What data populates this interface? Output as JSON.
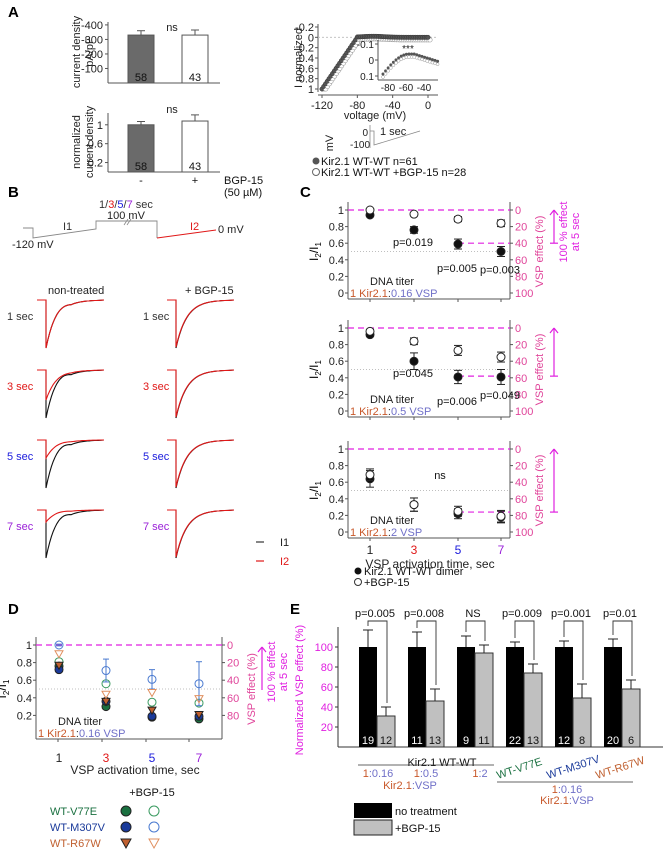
{
  "colors": {
    "magenta": "#e020e0",
    "pink": "#e0449a",
    "red": "#e01818",
    "blue": "#1a1adc",
    "purple": "#9a20d8",
    "orange": "#c8582a",
    "vsp_blue": "#7070c8",
    "green": "#1a7040",
    "navy": "#1a3a9a",
    "rust": "#c06030",
    "dark_grey": "#6a6a6a",
    "light_grey": "#c0c0c0"
  },
  "panels": {
    "A": "A",
    "B": "B",
    "C": "C",
    "D": "D",
    "E": "E"
  },
  "chart_data": [
    {
      "id": "A-top",
      "type": "bar",
      "title": "ns",
      "ylabel": "current density pA/pF",
      "categories": [
        "-",
        "+"
      ],
      "values": [
        -330,
        -330
      ],
      "errors": [
        30,
        35
      ],
      "n": [
        "58",
        "43"
      ],
      "yticks": [
        "-400",
        "-300",
        "-200",
        "-100"
      ],
      "ylim": [
        0,
        -420
      ]
    },
    {
      "id": "A-bottom",
      "type": "bar",
      "title": "ns",
      "ylabel": "normalized current density",
      "xlabel": "BGP-15 (50 µM)",
      "categories": [
        "-",
        "+"
      ],
      "values": [
        1.0,
        1.08
      ],
      "errors": [
        0.07,
        0.13
      ],
      "n": [
        "58",
        "43"
      ],
      "yticks": [
        "1",
        "0.6",
        "0.2"
      ],
      "ylim": [
        0,
        1.25
      ]
    },
    {
      "id": "A-iv",
      "type": "scatter",
      "xlabel": "voltage (mV)",
      "ylabel": "I normalized",
      "xticks": [
        "-120",
        "-80",
        "-40",
        "0"
      ],
      "yticks": [
        "-0.2",
        "0",
        "0.2",
        "0.4",
        "0.6",
        "0.8",
        "1"
      ],
      "inset": {
        "xticks": [
          "-80",
          "-60",
          "-40"
        ],
        "yticks": [
          "-0.1",
          "0",
          "0.1"
        ],
        "annotation": "***"
      },
      "protocol": {
        "label_y": "mV",
        "ticks": [
          "0",
          "-100"
        ],
        "duration": "1 sec"
      },
      "legend": [
        "Kir2.1 WT-WT  n=61",
        "Kir2.1 WT-WT +BGP-15 n=28"
      ]
    },
    {
      "id": "C1",
      "type": "scatter",
      "ylabel": "I2/I1",
      "y2label": "VSP effect (%)",
      "x": [
        1,
        3,
        5,
        7
      ],
      "series": [
        {
          "name": "Kir2.1 WT-WT dimer",
          "values": [
            0.94,
            0.76,
            0.59,
            0.5
          ],
          "errors": [
            0.02,
            0.04,
            0.06,
            0.06
          ]
        },
        {
          "name": "+BGP-15",
          "values": [
            1.0,
            0.95,
            0.89,
            0.84
          ],
          "errors": [
            0.01,
            0.02,
            0.03,
            0.04
          ]
        }
      ],
      "pvalues": [
        "",
        "p=0.019",
        "p=0.005",
        "p=0.003"
      ],
      "titer": {
        "label": "DNA titer",
        "kir": "1 Kir2.1",
        "sep": ":",
        "vsp": "0.16 VSP"
      },
      "effect_note": "100 % effect at 5 sec",
      "vsp_effect_5s": 40
    },
    {
      "id": "C2",
      "type": "scatter",
      "ylabel": "I2/I1",
      "y2label": "VSP effect (%)",
      "x": [
        1,
        3,
        5,
        7
      ],
      "series": [
        {
          "name": "Kir2.1 WT-WT dimer",
          "values": [
            0.92,
            0.6,
            0.41,
            0.41
          ],
          "errors": [
            0.02,
            0.1,
            0.08,
            0.09
          ]
        },
        {
          "name": "+BGP-15",
          "values": [
            0.96,
            0.84,
            0.73,
            0.65
          ],
          "errors": [
            0.02,
            0.04,
            0.06,
            0.06
          ]
        }
      ],
      "pvalues": [
        "",
        "p=0.045",
        "p=0.006",
        "p=0.049"
      ],
      "titer": {
        "label": "DNA titer",
        "kir": "1 Kir2.1",
        "sep": ":",
        "vsp": "0.5 VSP"
      },
      "vsp_effect_5s": 58
    },
    {
      "id": "C3",
      "type": "scatter",
      "ylabel": "I2/I1",
      "y2label": "VSP effect (%)",
      "xlabel": "VSP activation time, sec",
      "x": [
        1,
        3,
        5,
        7
      ],
      "series": [
        {
          "name": "Kir2.1 WT-WT dimer",
          "values": [
            0.64,
            0.33,
            0.22,
            0.18
          ],
          "errors": [
            0.1,
            0.08,
            0.06,
            0.07
          ]
        },
        {
          "name": "+BGP-15",
          "values": [
            0.69,
            0.33,
            0.25,
            0.19
          ],
          "errors": [
            0.07,
            0.08,
            0.06,
            0.07
          ]
        }
      ],
      "annotation": "ns",
      "titer": {
        "label": "DNA titer",
        "kir": "1 Kir2.1",
        "sep": ":",
        "vsp": "2 VSP"
      },
      "vsp_effect_5s": 76
    },
    {
      "id": "D",
      "type": "scatter",
      "ylabel": "I2/I1",
      "y2label": "VSP effect (%)",
      "xlabel": "VSP activation time, sec",
      "x": [
        1,
        3,
        5,
        7
      ],
      "series": [
        {
          "name": "WT-V77E",
          "treated": false,
          "values": [
            0.76,
            0.3,
            0.18,
            0.16
          ]
        },
        {
          "name": "WT-V77E +BGP-15",
          "treated": true,
          "values": [
            0.81,
            0.56,
            0.35,
            0.34
          ]
        },
        {
          "name": "WT-M307V",
          "treated": false,
          "values": [
            0.72,
            0.36,
            0.19,
            0.19
          ]
        },
        {
          "name": "WT-M307V +BGP-15",
          "treated": true,
          "values": [
            1.0,
            0.71,
            0.61,
            0.56
          ],
          "errors": [
            0.01,
            0.13,
            0.11,
            0.25
          ]
        },
        {
          "name": "WT-R67W",
          "treated": false,
          "values": [
            0.77,
            0.36,
            0.26,
            0.21
          ]
        },
        {
          "name": "WT-R67W +BGP-15",
          "treated": true,
          "values": [
            0.9,
            0.44,
            0.46,
            0.39
          ]
        }
      ],
      "titer": {
        "label": "DNA titer",
        "kir": "1 Kir2.1",
        "sep": ":",
        "vsp": "0.16 VSP"
      },
      "effect_note": "100 % effect at 5 sec",
      "legend_header": "+BGP-15"
    },
    {
      "id": "E",
      "type": "bar",
      "ylabel": "Normalized VSP effect (%)",
      "yticks": [
        "20",
        "40",
        "60",
        "80",
        "100"
      ],
      "ylim": [
        0,
        120
      ],
      "groups": [
        {
          "no_treatment": 100,
          "nt_err": 17,
          "bgp": 31,
          "bgp_err": 9,
          "n": [
            "19",
            "12"
          ],
          "p": "p=0.005"
        },
        {
          "no_treatment": 100,
          "nt_err": 15,
          "bgp": 46,
          "bgp_err": 12,
          "n": [
            "11",
            "13"
          ],
          "p": "p=0.008"
        },
        {
          "no_treatment": 100,
          "nt_err": 11,
          "bgp": 94,
          "bgp_err": 8,
          "n": [
            "9",
            "11"
          ],
          "p": "NS"
        },
        {
          "no_treatment": 100,
          "nt_err": 5,
          "bgp": 74,
          "bgp_err": 9,
          "n": [
            "22",
            "13"
          ],
          "p": "p=0.009"
        },
        {
          "no_treatment": 100,
          "nt_err": 6,
          "bgp": 49,
          "bgp_err": 14,
          "n": [
            "12",
            "8"
          ],
          "p": "p=0.001"
        },
        {
          "no_treatment": 100,
          "nt_err": 8,
          "bgp": 58,
          "bgp_err": 9,
          "n": [
            "20",
            "6"
          ],
          "p": "p=0.01"
        }
      ],
      "legend": [
        "no treatment",
        "+BGP-15"
      ]
    }
  ],
  "B": {
    "protocol_times": [
      "1",
      "/",
      "3",
      "/",
      "5",
      "/",
      "7",
      " sec"
    ],
    "protocol_100": "100 mV",
    "protocol_i1": "I1",
    "protocol_i2": "I2",
    "protocol_start": "-120 mV",
    "protocol_end": "0 mV",
    "col_left": "non-treated",
    "col_right": "+ BGP-15",
    "rows": [
      "1 sec",
      "3 sec",
      "5 sec",
      "7 sec"
    ],
    "legend_i1": "I1",
    "legend_i2": "I2"
  },
  "C_legend": [
    "Kir2.1 WT-WT dimer",
    "+BGP-15"
  ],
  "E_labels": {
    "wt": "Kir2.1 WT-WT",
    "ratios": [
      {
        "k": "1",
        "v": ":0.16"
      },
      {
        "k": "1",
        "v": ":0.5"
      },
      {
        "k": "1",
        "v": ":2"
      }
    ],
    "kir_vsp_k": "Kir2.1",
    "kir_vsp_v": ":VSP",
    "mutants": [
      "WT-V77E",
      "WT-M307V",
      "WT-R67W"
    ],
    "mut_ratio_k": "1",
    "mut_ratio_v": ":0.16"
  }
}
